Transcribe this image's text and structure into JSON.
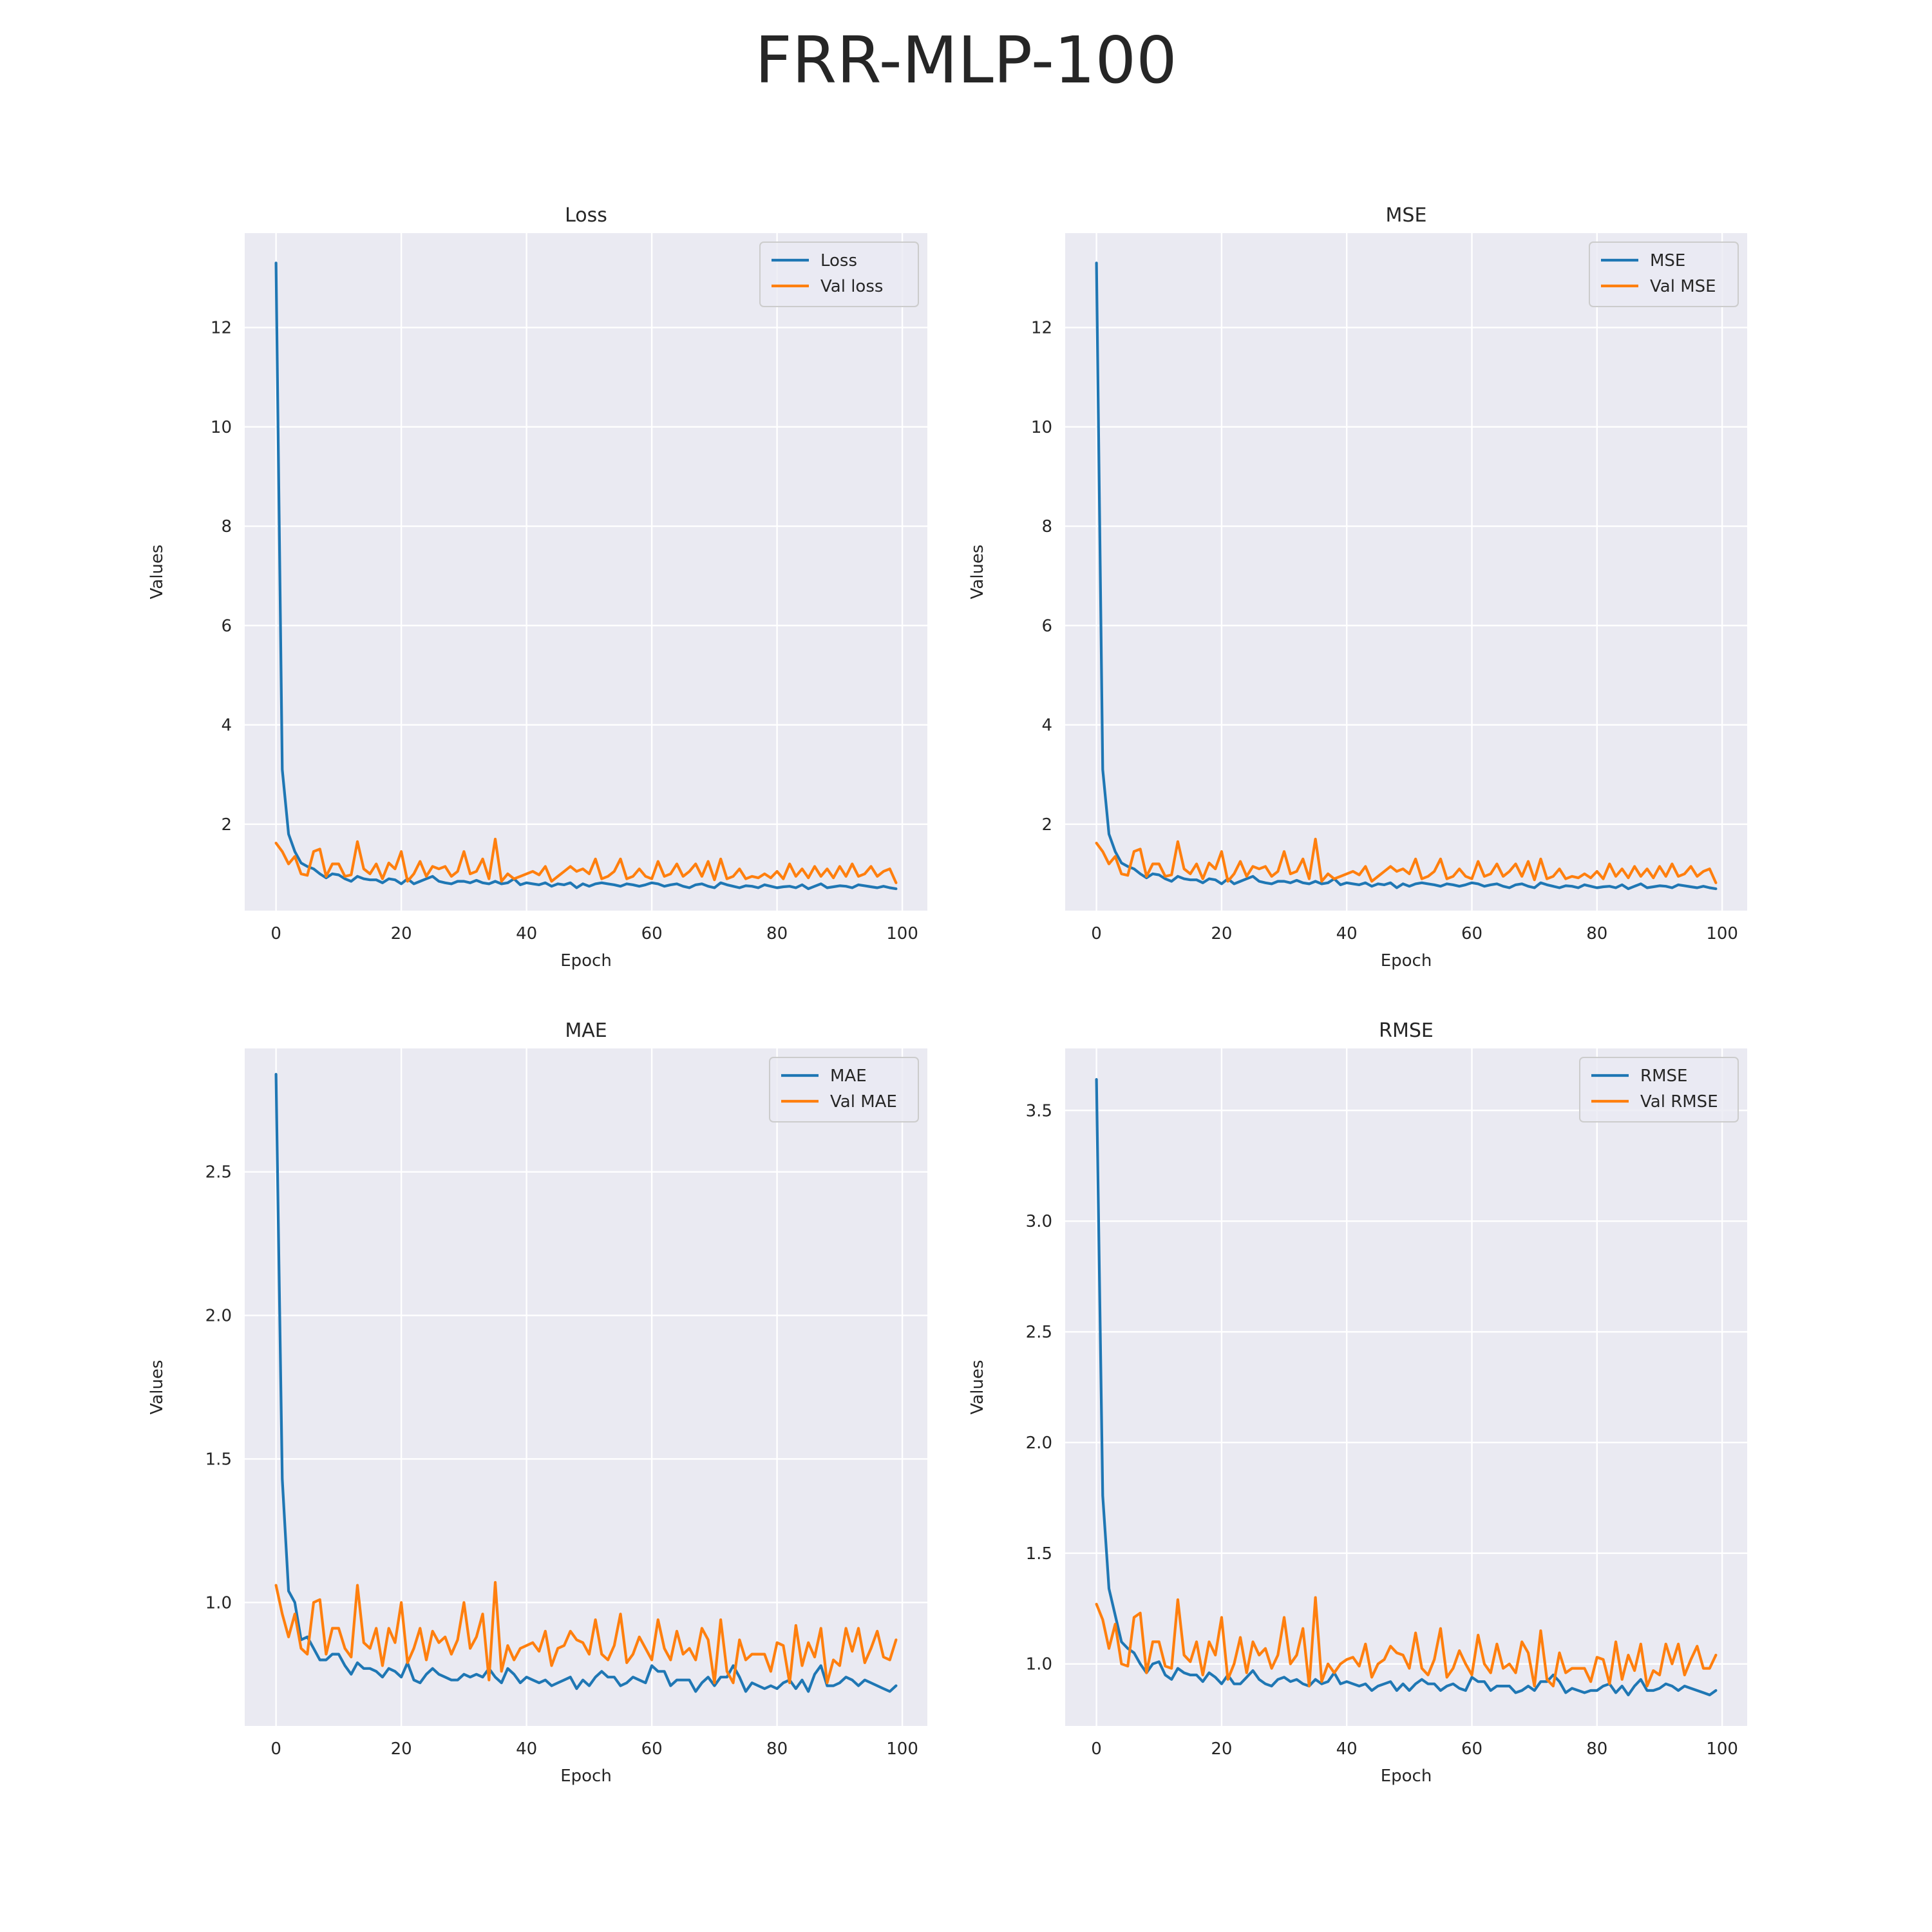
{
  "figure": {
    "title": "FRR-MLP-100"
  },
  "colors": {
    "train": "#1f77b4",
    "val": "#ff7f0e",
    "panel_bg": "#eaeaf2",
    "grid": "#ffffff",
    "text": "#262626"
  },
  "chart_data": [
    {
      "type": "line",
      "title": "Loss",
      "xlabel": "Epoch",
      "ylabel": "Values",
      "xlim": [
        -5,
        104
      ],
      "ylim": [
        0.26,
        13.9
      ],
      "xticks": [
        0,
        20,
        40,
        60,
        80,
        100
      ],
      "yticks": [
        2,
        4,
        6,
        8,
        10,
        12
      ],
      "ytick_labels": [
        "2",
        "4",
        "6",
        "8",
        "10",
        "12"
      ],
      "grid": true,
      "legend": "top-right",
      "series": [
        {
          "name": "Loss",
          "values": [
            13.3,
            3.1,
            1.8,
            1.45,
            1.22,
            1.15,
            1.1,
            1.0,
            0.92,
            1.0,
            0.98,
            0.9,
            0.85,
            0.95,
            0.9,
            0.88,
            0.88,
            0.82,
            0.9,
            0.88,
            0.8,
            0.9,
            0.8,
            0.85,
            0.9,
            0.95,
            0.85,
            0.82,
            0.8,
            0.85,
            0.85,
            0.82,
            0.87,
            0.82,
            0.8,
            0.85,
            0.8,
            0.82,
            0.9,
            0.78,
            0.82,
            0.8,
            0.78,
            0.82,
            0.75,
            0.8,
            0.78,
            0.82,
            0.72,
            0.8,
            0.75,
            0.8,
            0.82,
            0.8,
            0.78,
            0.75,
            0.8,
            0.78,
            0.75,
            0.78,
            0.82,
            0.8,
            0.75,
            0.78,
            0.8,
            0.75,
            0.72,
            0.78,
            0.8,
            0.75,
            0.72,
            0.82,
            0.78,
            0.75,
            0.72,
            0.76,
            0.75,
            0.72,
            0.78,
            0.75,
            0.72,
            0.74,
            0.75,
            0.72,
            0.78,
            0.7,
            0.75,
            0.8,
            0.72,
            0.74,
            0.76,
            0.75,
            0.72,
            0.78,
            0.76,
            0.74,
            0.72,
            0.75,
            0.72,
            0.7
          ]
        },
        {
          "name": "Val loss",
          "values": [
            1.62,
            1.45,
            1.2,
            1.35,
            1.0,
            0.97,
            1.45,
            1.5,
            0.95,
            1.2,
            1.2,
            0.95,
            0.98,
            1.65,
            1.1,
            1.0,
            1.2,
            0.9,
            1.22,
            1.1,
            1.45,
            0.85,
            1.0,
            1.25,
            0.95,
            1.15,
            1.1,
            1.15,
            0.95,
            1.05,
            1.45,
            1.0,
            1.05,
            1.3,
            0.9,
            1.7,
            0.85,
            1.0,
            0.9,
            0.95,
            1.0,
            1.05,
            0.98,
            1.15,
            0.85,
            0.95,
            1.05,
            1.15,
            1.05,
            1.1,
            1.0,
            1.3,
            0.9,
            0.95,
            1.05,
            1.3,
            0.9,
            0.95,
            1.1,
            0.95,
            0.9,
            1.25,
            0.95,
            1.0,
            1.2,
            0.95,
            1.05,
            1.2,
            0.95,
            1.25,
            0.88,
            1.3,
            0.9,
            0.95,
            1.1,
            0.9,
            0.95,
            0.92,
            1.0,
            0.92,
            1.05,
            0.9,
            1.2,
            0.95,
            1.1,
            0.92,
            1.15,
            0.95,
            1.1,
            0.92,
            1.15,
            0.95,
            1.2,
            0.95,
            1.0,
            1.15,
            0.95,
            1.05,
            1.1,
            0.82
          ]
        }
      ]
    },
    {
      "type": "line",
      "title": "MSE",
      "xlabel": "Epoch",
      "ylabel": "Values",
      "xlim": [
        -5,
        104
      ],
      "ylim": [
        0.26,
        13.9
      ],
      "xticks": [
        0,
        20,
        40,
        60,
        80,
        100
      ],
      "yticks": [
        2,
        4,
        6,
        8,
        10,
        12
      ],
      "ytick_labels": [
        "2",
        "4",
        "6",
        "8",
        "10",
        "12"
      ],
      "grid": true,
      "legend": "top-right",
      "series": [
        {
          "name": "MSE",
          "values": [
            13.3,
            3.1,
            1.8,
            1.45,
            1.22,
            1.15,
            1.1,
            1.0,
            0.92,
            1.0,
            0.98,
            0.9,
            0.85,
            0.95,
            0.9,
            0.88,
            0.88,
            0.82,
            0.9,
            0.88,
            0.8,
            0.9,
            0.8,
            0.85,
            0.9,
            0.95,
            0.85,
            0.82,
            0.8,
            0.85,
            0.85,
            0.82,
            0.87,
            0.82,
            0.8,
            0.85,
            0.8,
            0.82,
            0.9,
            0.78,
            0.82,
            0.8,
            0.78,
            0.82,
            0.75,
            0.8,
            0.78,
            0.82,
            0.72,
            0.8,
            0.75,
            0.8,
            0.82,
            0.8,
            0.78,
            0.75,
            0.8,
            0.78,
            0.75,
            0.78,
            0.82,
            0.8,
            0.75,
            0.78,
            0.8,
            0.75,
            0.72,
            0.78,
            0.8,
            0.75,
            0.72,
            0.82,
            0.78,
            0.75,
            0.72,
            0.76,
            0.75,
            0.72,
            0.78,
            0.75,
            0.72,
            0.74,
            0.75,
            0.72,
            0.78,
            0.7,
            0.75,
            0.8,
            0.72,
            0.74,
            0.76,
            0.75,
            0.72,
            0.78,
            0.76,
            0.74,
            0.72,
            0.75,
            0.72,
            0.7
          ]
        },
        {
          "name": "Val MSE",
          "values": [
            1.62,
            1.45,
            1.2,
            1.35,
            1.0,
            0.97,
            1.45,
            1.5,
            0.95,
            1.2,
            1.2,
            0.95,
            0.98,
            1.65,
            1.1,
            1.0,
            1.2,
            0.9,
            1.22,
            1.1,
            1.45,
            0.85,
            1.0,
            1.25,
            0.95,
            1.15,
            1.1,
            1.15,
            0.95,
            1.05,
            1.45,
            1.0,
            1.05,
            1.3,
            0.9,
            1.7,
            0.85,
            1.0,
            0.9,
            0.95,
            1.0,
            1.05,
            0.98,
            1.15,
            0.85,
            0.95,
            1.05,
            1.15,
            1.05,
            1.1,
            1.0,
            1.3,
            0.9,
            0.95,
            1.05,
            1.3,
            0.9,
            0.95,
            1.1,
            0.95,
            0.9,
            1.25,
            0.95,
            1.0,
            1.2,
            0.95,
            1.05,
            1.2,
            0.95,
            1.25,
            0.88,
            1.3,
            0.9,
            0.95,
            1.1,
            0.9,
            0.95,
            0.92,
            1.0,
            0.92,
            1.05,
            0.9,
            1.2,
            0.95,
            1.1,
            0.92,
            1.15,
            0.95,
            1.1,
            0.92,
            1.15,
            0.95,
            1.2,
            0.95,
            1.0,
            1.15,
            0.95,
            1.05,
            1.1,
            0.82
          ]
        }
      ]
    },
    {
      "type": "line",
      "title": "MAE",
      "xlabel": "Epoch",
      "ylabel": "Values",
      "xlim": [
        -5,
        104
      ],
      "ylim": [
        0.57,
        2.93
      ],
      "xticks": [
        0,
        20,
        40,
        60,
        80,
        100
      ],
      "yticks": [
        1.0,
        1.5,
        2.0,
        2.5
      ],
      "ytick_labels": [
        "1.0",
        "1.5",
        "2.0",
        "2.5"
      ],
      "grid": true,
      "legend": "top-right",
      "series": [
        {
          "name": "MAE",
          "values": [
            2.84,
            1.43,
            1.04,
            1.0,
            0.87,
            0.88,
            0.84,
            0.8,
            0.8,
            0.82,
            0.82,
            0.78,
            0.75,
            0.79,
            0.77,
            0.77,
            0.76,
            0.74,
            0.77,
            0.76,
            0.74,
            0.79,
            0.73,
            0.72,
            0.75,
            0.77,
            0.75,
            0.74,
            0.73,
            0.73,
            0.75,
            0.74,
            0.75,
            0.74,
            0.77,
            0.74,
            0.72,
            0.77,
            0.75,
            0.72,
            0.74,
            0.73,
            0.72,
            0.73,
            0.71,
            0.72,
            0.73,
            0.74,
            0.7,
            0.73,
            0.71,
            0.74,
            0.76,
            0.74,
            0.74,
            0.71,
            0.72,
            0.74,
            0.73,
            0.72,
            0.78,
            0.76,
            0.76,
            0.71,
            0.73,
            0.73,
            0.73,
            0.69,
            0.72,
            0.74,
            0.71,
            0.74,
            0.74,
            0.78,
            0.74,
            0.69,
            0.72,
            0.71,
            0.7,
            0.71,
            0.7,
            0.72,
            0.73,
            0.7,
            0.73,
            0.69,
            0.75,
            0.78,
            0.71,
            0.71,
            0.72,
            0.74,
            0.73,
            0.71,
            0.73,
            0.72,
            0.71,
            0.7,
            0.69,
            0.71
          ]
        },
        {
          "name": "Val MAE",
          "values": [
            1.06,
            0.96,
            0.88,
            0.96,
            0.84,
            0.82,
            1.0,
            1.01,
            0.82,
            0.91,
            0.91,
            0.84,
            0.81,
            1.06,
            0.86,
            0.84,
            0.91,
            0.78,
            0.91,
            0.86,
            1.0,
            0.79,
            0.84,
            0.91,
            0.8,
            0.9,
            0.86,
            0.88,
            0.82,
            0.87,
            1.0,
            0.84,
            0.88,
            0.96,
            0.73,
            1.07,
            0.76,
            0.85,
            0.8,
            0.84,
            0.85,
            0.86,
            0.83,
            0.9,
            0.78,
            0.84,
            0.85,
            0.9,
            0.87,
            0.86,
            0.82,
            0.94,
            0.82,
            0.8,
            0.85,
            0.96,
            0.79,
            0.82,
            0.88,
            0.84,
            0.8,
            0.94,
            0.84,
            0.8,
            0.9,
            0.82,
            0.84,
            0.8,
            0.91,
            0.87,
            0.72,
            0.94,
            0.76,
            0.72,
            0.87,
            0.8,
            0.82,
            0.82,
            0.82,
            0.76,
            0.86,
            0.85,
            0.72,
            0.92,
            0.78,
            0.86,
            0.81,
            0.91,
            0.72,
            0.8,
            0.78,
            0.91,
            0.83,
            0.91,
            0.79,
            0.84,
            0.9,
            0.81,
            0.8,
            0.87
          ]
        }
      ]
    },
    {
      "type": "line",
      "title": "RMSE",
      "xlabel": "Epoch",
      "ylabel": "Values",
      "xlim": [
        -5,
        104
      ],
      "ylim": [
        0.72,
        3.78
      ],
      "xticks": [
        0,
        20,
        40,
        60,
        80,
        100
      ],
      "yticks": [
        1.0,
        1.5,
        2.0,
        2.5,
        3.0,
        3.5
      ],
      "ytick_labels": [
        "1.0",
        "1.5",
        "2.0",
        "2.5",
        "3.0",
        "3.5"
      ],
      "grid": true,
      "legend": "top-right",
      "series": [
        {
          "name": "RMSE",
          "values": [
            3.64,
            1.76,
            1.34,
            1.22,
            1.1,
            1.07,
            1.05,
            1.0,
            0.96,
            1.0,
            1.01,
            0.95,
            0.93,
            0.98,
            0.96,
            0.95,
            0.95,
            0.92,
            0.96,
            0.94,
            0.91,
            0.95,
            0.91,
            0.91,
            0.94,
            0.97,
            0.93,
            0.91,
            0.9,
            0.93,
            0.94,
            0.92,
            0.93,
            0.91,
            0.9,
            0.93,
            0.91,
            0.92,
            0.96,
            0.91,
            0.92,
            0.91,
            0.9,
            0.91,
            0.88,
            0.9,
            0.91,
            0.92,
            0.88,
            0.91,
            0.88,
            0.91,
            0.93,
            0.91,
            0.91,
            0.88,
            0.9,
            0.91,
            0.89,
            0.88,
            0.94,
            0.92,
            0.92,
            0.88,
            0.9,
            0.9,
            0.9,
            0.87,
            0.88,
            0.9,
            0.88,
            0.92,
            0.92,
            0.95,
            0.92,
            0.87,
            0.89,
            0.88,
            0.87,
            0.88,
            0.88,
            0.9,
            0.91,
            0.87,
            0.9,
            0.86,
            0.9,
            0.93,
            0.88,
            0.88,
            0.89,
            0.91,
            0.9,
            0.88,
            0.9,
            0.89,
            0.88,
            0.87,
            0.86,
            0.88
          ]
        },
        {
          "name": "Val RMSE",
          "values": [
            1.27,
            1.2,
            1.07,
            1.18,
            1.0,
            0.99,
            1.21,
            1.23,
            0.96,
            1.1,
            1.1,
            0.99,
            0.98,
            1.29,
            1.04,
            1.01,
            1.1,
            0.95,
            1.1,
            1.04,
            1.21,
            0.93,
            1.0,
            1.12,
            0.96,
            1.1,
            1.04,
            1.07,
            0.98,
            1.04,
            1.21,
            1.0,
            1.04,
            1.16,
            0.9,
            1.3,
            0.92,
            1.0,
            0.96,
            1.0,
            1.02,
            1.03,
            0.99,
            1.09,
            0.94,
            1.0,
            1.02,
            1.08,
            1.05,
            1.04,
            0.98,
            1.14,
            0.98,
            0.95,
            1.02,
            1.16,
            0.94,
            0.98,
            1.06,
            1.0,
            0.95,
            1.13,
            1.0,
            0.96,
            1.09,
            0.98,
            1.0,
            0.96,
            1.1,
            1.05,
            0.9,
            1.15,
            0.93,
            0.9,
            1.05,
            0.96,
            0.98,
            0.98,
            0.98,
            0.92,
            1.03,
            1.02,
            0.91,
            1.1,
            0.93,
            1.04,
            0.97,
            1.09,
            0.9,
            0.97,
            0.95,
            1.09,
            1.0,
            1.09,
            0.95,
            1.02,
            1.08,
            0.98,
            0.98,
            1.04
          ]
        }
      ]
    }
  ]
}
